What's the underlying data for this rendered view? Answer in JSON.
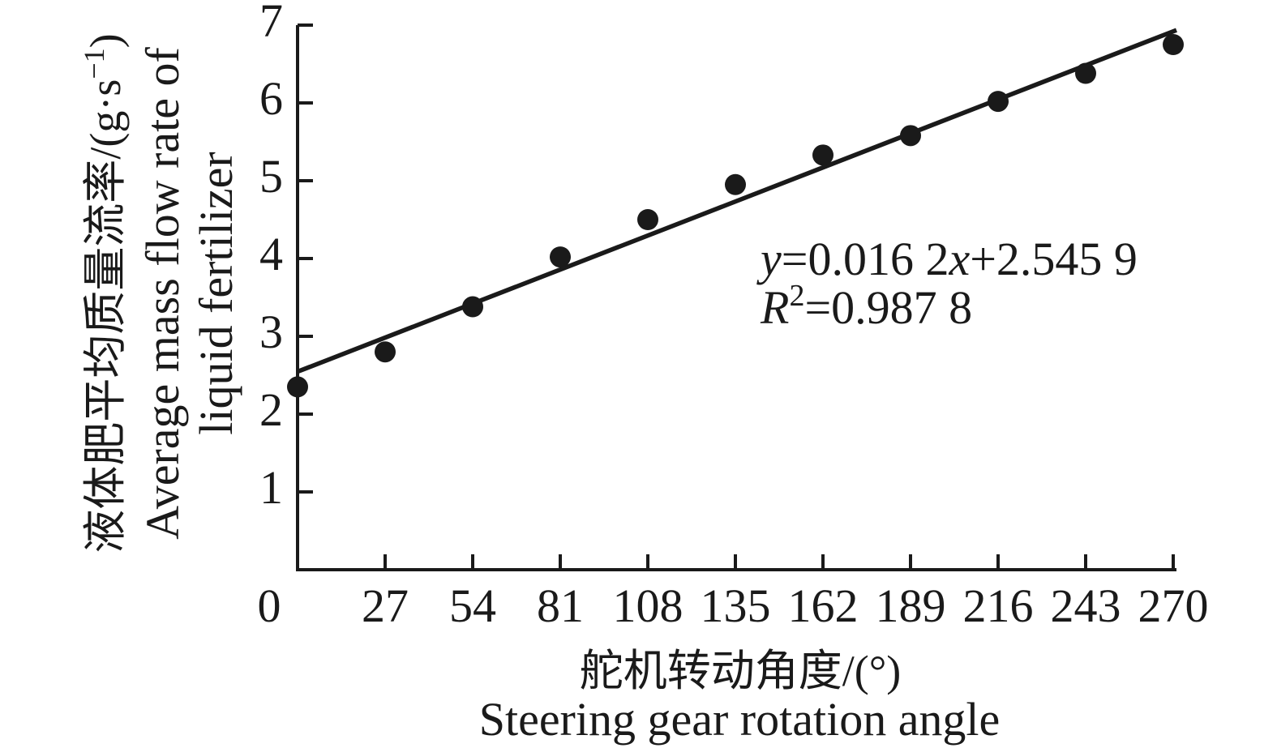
{
  "figure": {
    "background": "#ffffff",
    "ink_color": "#1a1a1a"
  },
  "chart_data": {
    "type": "scatter",
    "x": [
      0,
      27,
      54,
      81,
      108,
      135,
      162,
      189,
      216,
      243,
      270
    ],
    "y": [
      2.35,
      2.8,
      3.38,
      4.02,
      4.5,
      4.95,
      5.33,
      5.58,
      6.02,
      6.38,
      6.75
    ],
    "fit_line": {
      "slope": 0.0162,
      "intercept": 2.5459,
      "x_start": 0,
      "x_end": 271
    },
    "annotation": {
      "line1_text": "y=0.016 2x+2.545 9",
      "line2_text": "R²=0.987 8",
      "line1_parts": [
        {
          "text": "y",
          "style": "italic"
        },
        {
          "text": "=0.016 2",
          "style": "normal"
        },
        {
          "text": "x",
          "style": "italic"
        },
        {
          "text": "+2.545 9",
          "style": "normal"
        }
      ],
      "line2_parts": [
        {
          "text": "R",
          "style": "italic"
        },
        {
          "text": "2",
          "style": "super"
        },
        {
          "text": "=0.987 8",
          "style": "normal"
        }
      ]
    },
    "xlabel_zh": "舵机转动角度/(°)",
    "xlabel_en": "Steering gear rotation angle",
    "ylabel_zh_text": "液体肥平均质量流率/(g·s⁻¹)",
    "ylabel_zh_parts": [
      {
        "text": "液体肥平均质量流率/(g·s",
        "style": "normal"
      },
      {
        "text": "−1",
        "style": "super"
      },
      {
        "text": ")",
        "style": "normal"
      }
    ],
    "ylabel_en_line1": "Average mass flow rate of",
    "ylabel_en_line2": "liquid fertilizer",
    "x_ticks": [
      0,
      27,
      54,
      81,
      108,
      135,
      162,
      189,
      216,
      243,
      270
    ],
    "y_ticks": [
      1,
      2,
      3,
      4,
      5,
      6,
      7
    ],
    "xlim": [
      0,
      271
    ],
    "ylim": [
      0,
      7
    ],
    "grid": false,
    "legend": "none",
    "marker": {
      "shape": "circle",
      "color": "#1a1a1a",
      "radius_px": 13
    },
    "line_color": "#1a1a1a"
  }
}
